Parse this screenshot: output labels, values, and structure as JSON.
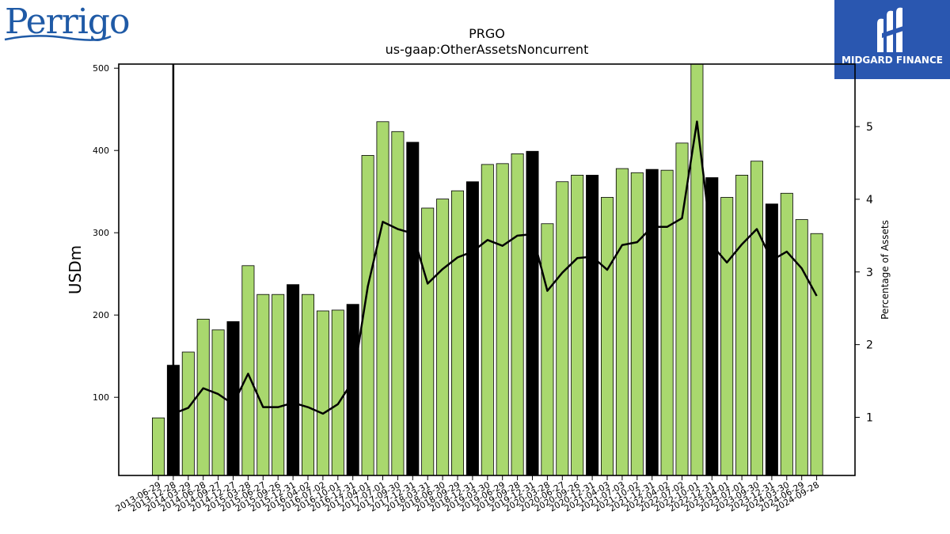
{
  "logos": {
    "left_text": "Perrigo",
    "right_text": "MIDGARD FINANCE"
  },
  "colors": {
    "bar_regular": "#a9d86e",
    "bar_fiscal_q4": "#000000",
    "line": "#000000",
    "brand_blue": "#1f5aa6",
    "midgard_bg": "#2a57b0"
  },
  "chart_data": {
    "type": "bar",
    "title": "PRGO",
    "subtitle": "us-gaap:OtherAssetsNoncurrent",
    "ylabel": "USDm",
    "y2label": "Percentage of Assets",
    "ylim": [
      5,
      505
    ],
    "y2lim": [
      0.2,
      5.86
    ],
    "yticks": [
      100,
      200,
      300,
      400,
      500
    ],
    "y2ticks": [
      1,
      2,
      3,
      4,
      5
    ],
    "categories": [
      "2013-06-29",
      "2013-12-28",
      "2014-03-29",
      "2014-06-28",
      "2014-09-27",
      "2014-12-27",
      "2015-03-28",
      "2015-06-27",
      "2015-09-26",
      "2015-12-31",
      "2016-04-02",
      "2016-07-02",
      "2016-10-01",
      "2016-12-31",
      "2017-04-01",
      "2017-07-01",
      "2017-09-30",
      "2017-12-31",
      "2018-03-31",
      "2018-06-30",
      "2018-09-29",
      "2018-12-31",
      "2019-03-30",
      "2019-06-29",
      "2019-09-28",
      "2019-12-31",
      "2020-03-28",
      "2020-06-27",
      "2020-09-26",
      "2020-12-31",
      "2021-04-03",
      "2021-07-03",
      "2021-10-02",
      "2021-12-31",
      "2022-04-02",
      "2022-07-02",
      "2022-10-01",
      "2022-12-31",
      "2023-04-01",
      "2023-07-01",
      "2023-09-30",
      "2023-12-31",
      "2024-03-30",
      "2024-06-29",
      "2024-09-28"
    ],
    "series": [
      {
        "type": "bar",
        "values": [
          75,
          139,
          155,
          195,
          182,
          192,
          260,
          225,
          225,
          237,
          225,
          205,
          206,
          213,
          394,
          435,
          423,
          410,
          330,
          341,
          351,
          362,
          383,
          384,
          396,
          399,
          311,
          362,
          370,
          370,
          343,
          378,
          373,
          377,
          376,
          409,
          510,
          367,
          343,
          370,
          387,
          335,
          348,
          316,
          299
        ],
        "highlight": [
          false,
          true,
          false,
          false,
          false,
          true,
          false,
          false,
          false,
          true,
          false,
          false,
          false,
          true,
          false,
          false,
          false,
          true,
          false,
          false,
          false,
          true,
          false,
          false,
          false,
          true,
          false,
          false,
          false,
          true,
          false,
          false,
          false,
          true,
          false,
          false,
          false,
          true,
          false,
          false,
          false,
          true,
          false,
          false,
          false
        ]
      },
      {
        "type": "line",
        "axis": "right",
        "values": [
          null,
          1.05,
          1.13,
          1.4,
          1.32,
          1.18,
          1.6,
          1.14,
          1.14,
          1.2,
          1.14,
          1.05,
          1.18,
          1.5,
          2.8,
          3.69,
          3.59,
          3.53,
          2.84,
          3.04,
          3.2,
          3.28,
          3.44,
          3.36,
          3.5,
          3.52,
          2.74,
          2.99,
          3.19,
          3.21,
          3.03,
          3.37,
          3.41,
          3.62,
          3.62,
          3.74,
          5.07,
          3.37,
          3.13,
          3.38,
          3.59,
          3.16,
          3.28,
          3.05,
          2.67
        ]
      }
    ],
    "vline_category": "2013-12-28"
  }
}
